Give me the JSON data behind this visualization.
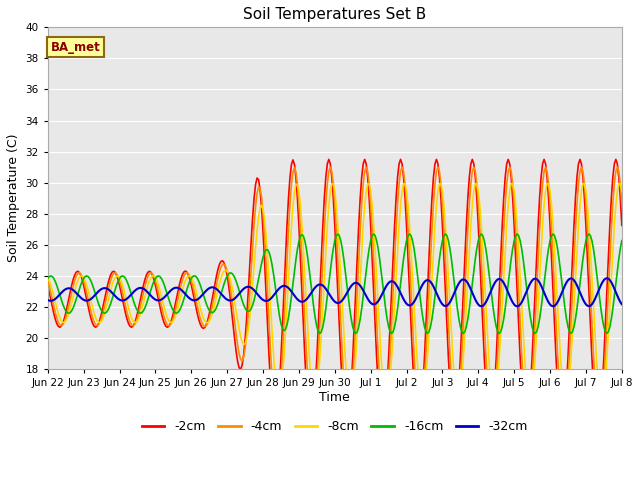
{
  "title": "Soil Temperatures Set B",
  "xlabel": "Time",
  "ylabel": "Soil Temperature (C)",
  "ylim": [
    18,
    40
  ],
  "yticks": [
    18,
    20,
    22,
    24,
    26,
    28,
    30,
    32,
    34,
    36,
    38,
    40
  ],
  "annotation": "BA_met",
  "annotation_color": "#8B0000",
  "annotation_bg": "#FFFF99",
  "annotation_edge": "#8B6914",
  "colors": {
    "-2cm": "#FF0000",
    "-4cm": "#FF8C00",
    "-8cm": "#FFD700",
    "-16cm": "#00BB00",
    "-32cm": "#0000CC"
  },
  "line_width": 1.2,
  "bg_color": "#E8E8E8",
  "grid_color": "#FFFFFF",
  "total_hours": 384,
  "tick_hours": [
    0,
    24,
    48,
    72,
    96,
    120,
    144,
    168,
    192,
    216,
    240,
    264,
    288,
    312,
    336,
    360,
    384
  ],
  "tick_labels": [
    "Jun 22",
    "Jun 23",
    "Jun 24",
    "Jun 25",
    "Jun 26",
    "Jun 27",
    "Jun 28",
    "Jun 29",
    "Jun 30",
    "Jul 1",
    "Jul 2",
    "Jul 3",
    "Jul 4",
    "Jul 5",
    "Jul 6",
    "Jul 7",
    "Jul 8"
  ]
}
